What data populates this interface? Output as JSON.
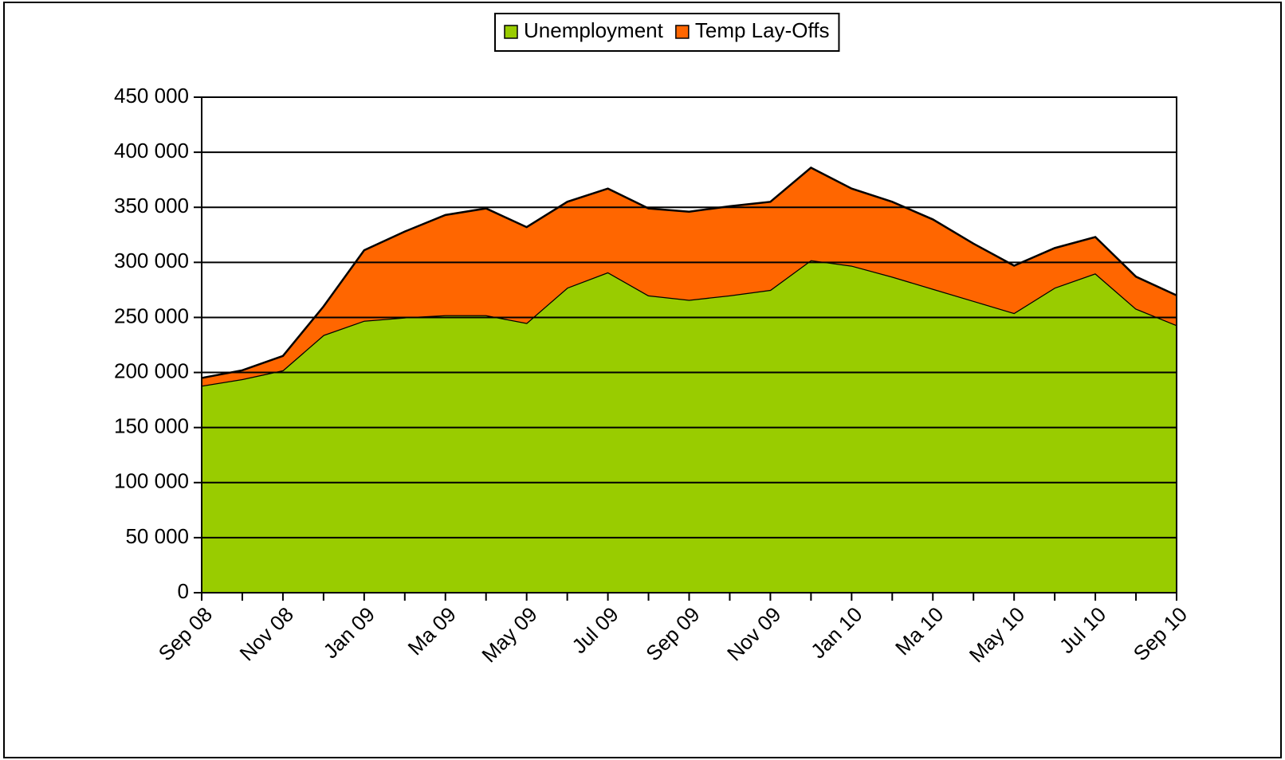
{
  "chart_data": {
    "type": "stacked_area",
    "categories": [
      "Sep 08",
      null,
      "Nov 08",
      null,
      "Jan 09",
      null,
      "Ma 09",
      null,
      "May 09",
      null,
      "Jul 09",
      null,
      "Sep 09",
      null,
      "Nov 09",
      null,
      "Jan 10",
      null,
      "Ma 10",
      null,
      "May 10",
      null,
      "Jul 10",
      null,
      "Sep 10"
    ],
    "series": [
      {
        "name": "Unemployment",
        "color": "#99cc00",
        "values": [
          188000,
          194000,
          202000,
          234000,
          247000,
          250000,
          252000,
          252000,
          245000,
          277000,
          291000,
          270000,
          266000,
          270000,
          275000,
          302000,
          297000,
          287000,
          276000,
          265000,
          254000,
          277000,
          290000,
          258000,
          243000
        ]
      },
      {
        "name": "Temp Lay-Offs",
        "color": "#ff6600",
        "values": [
          7000,
          8000,
          13000,
          26000,
          64000,
          78000,
          91000,
          97000,
          87000,
          78000,
          76000,
          79000,
          80000,
          81000,
          80000,
          84000,
          70000,
          68000,
          63000,
          52000,
          43000,
          36000,
          33000,
          29000,
          27000
        ]
      }
    ],
    "ylim": [
      0,
      450000
    ],
    "yticks": [
      {
        "value": 0,
        "label": "0"
      },
      {
        "value": 50000,
        "label": "50 000"
      },
      {
        "value": 100000,
        "label": "100 000"
      },
      {
        "value": 150000,
        "label": "150 000"
      },
      {
        "value": 200000,
        "label": "200 000"
      },
      {
        "value": 250000,
        "label": "250 000"
      },
      {
        "value": 300000,
        "label": "300 000"
      },
      {
        "value": 350000,
        "label": "350 000"
      },
      {
        "value": 400000,
        "label": "400 000"
      },
      {
        "value": 450000,
        "label": "450 000"
      }
    ],
    "grid": true,
    "legend": "top"
  }
}
